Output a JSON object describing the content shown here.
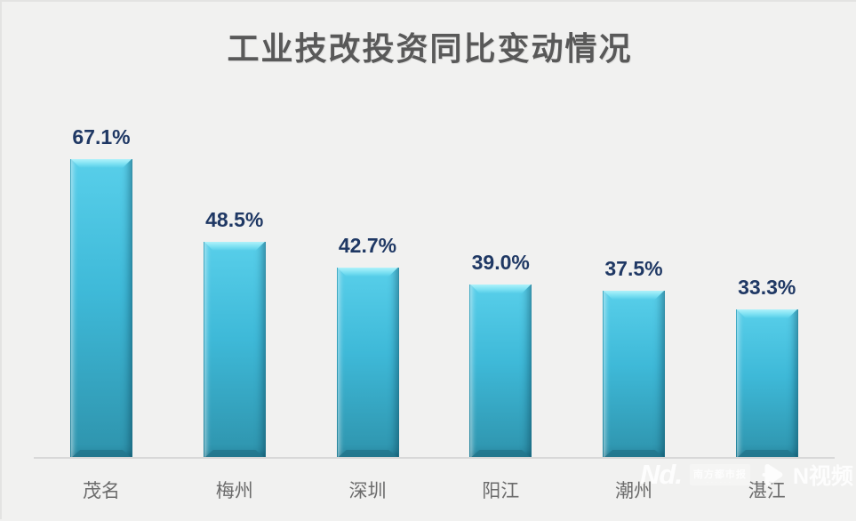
{
  "page": {
    "background": "#F1F1F0"
  },
  "chart_data": {
    "type": "bar",
    "title": "工业技改投资同比变动情况",
    "categories": [
      "茂名",
      "梅州",
      "深圳",
      "阳江",
      "潮州",
      "湛江"
    ],
    "values": [
      67.1,
      48.5,
      42.7,
      39.0,
      37.5,
      33.3
    ],
    "value_labels": [
      "67.1%",
      "48.5%",
      "42.7%",
      "39.0%",
      "37.5%",
      "33.3%"
    ],
    "unit": "%",
    "xlabel": "",
    "ylabel": "",
    "ylim": [
      0,
      70
    ],
    "grid": false,
    "legend_position": "none",
    "bar_color_main": "#3EB9D8",
    "bar_color_highlight": "#7CE0F2",
    "bar_color_shade": "#2E93AC",
    "value_label_color": "#1F3864",
    "category_label_color": "#6B6B6B",
    "title_color": "#595959",
    "axis_line_color": "#D8D8D8"
  },
  "watermark": {
    "logo_text": "Nd.",
    "badge_text": "南方都市报",
    "badge_dots": "······",
    "video_text": "N视频",
    "color": "#FFFFFF"
  }
}
